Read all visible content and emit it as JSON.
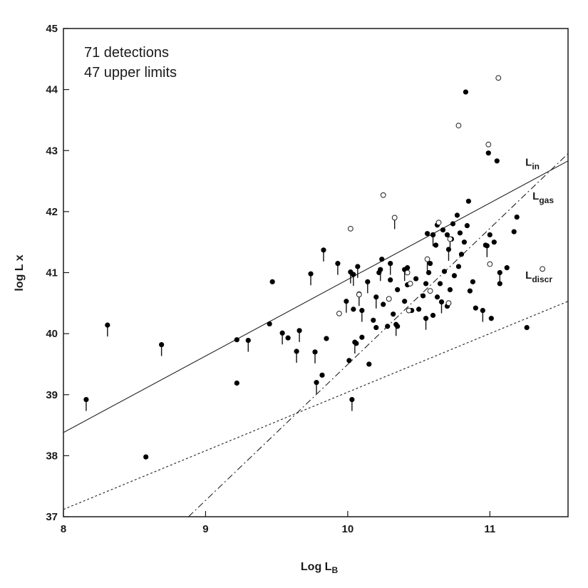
{
  "chart_data": {
    "type": "scatter",
    "title": "",
    "xlabel": "Log L",
    "xlabel_sub": "B",
    "ylabel": "log L x",
    "xlim": [
      8,
      11.55
    ],
    "ylim": [
      37,
      45
    ],
    "xticks": [
      "8",
      "9",
      "10",
      "11"
    ],
    "yticks": [
      "37",
      "38",
      "39",
      "40",
      "41",
      "42",
      "43",
      "44",
      "45"
    ],
    "grid": false,
    "annotations": [
      "71 detections",
      "47 upper limits"
    ],
    "lines": [
      {
        "name": "L",
        "sub": "in",
        "style": "solid",
        "x": [
          8.0,
          11.55
        ],
        "y": [
          38.38,
          42.83
        ],
        "label_x": 11.25,
        "label_y": 42.75
      },
      {
        "name": "L",
        "sub": "gas",
        "style": "dashdot",
        "x": [
          8.88,
          11.55
        ],
        "y": [
          37.0,
          42.95
        ],
        "label_x": 11.3,
        "label_y": 42.2
      },
      {
        "name": "L",
        "sub": "discr",
        "style": "dotted",
        "x": [
          8.0,
          11.55
        ],
        "y": [
          37.12,
          40.53
        ],
        "label_x": 11.25,
        "label_y": 40.9
      }
    ],
    "series": [
      {
        "name": "detections",
        "marker": "filled-circle",
        "points": [
          [
            8.58,
            37.98
          ],
          [
            9.22,
            39.19
          ],
          [
            9.22,
            39.9
          ],
          [
            9.45,
            40.16
          ],
          [
            9.47,
            40.85
          ],
          [
            9.58,
            39.93
          ],
          [
            9.82,
            39.32
          ],
          [
            9.85,
            39.92
          ],
          [
            10.01,
            39.56
          ],
          [
            10.04,
            40.4
          ],
          [
            10.06,
            39.84
          ],
          [
            10.08,
            40.65
          ],
          [
            10.1,
            39.94
          ],
          [
            10.15,
            39.5
          ],
          [
            10.18,
            40.22
          ],
          [
            10.22,
            41.0
          ],
          [
            10.25,
            40.48
          ],
          [
            10.28,
            40.12
          ],
          [
            10.3,
            40.88
          ],
          [
            10.32,
            40.32
          ],
          [
            10.35,
            40.72
          ],
          [
            10.4,
            40.53
          ],
          [
            10.42,
            41.08
          ],
          [
            10.45,
            40.38
          ],
          [
            10.48,
            40.9
          ],
          [
            10.5,
            40.4
          ],
          [
            10.53,
            40.62
          ],
          [
            10.55,
            40.82
          ],
          [
            10.57,
            41.0
          ],
          [
            10.6,
            40.3
          ],
          [
            10.63,
            40.6
          ],
          [
            10.65,
            40.82
          ],
          [
            10.68,
            41.02
          ],
          [
            10.7,
            40.45
          ],
          [
            10.72,
            40.72
          ],
          [
            10.75,
            40.95
          ],
          [
            10.78,
            41.1
          ],
          [
            10.8,
            41.3
          ],
          [
            10.82,
            41.5
          ],
          [
            10.84,
            41.77
          ],
          [
            10.86,
            40.7
          ],
          [
            10.88,
            40.85
          ],
          [
            10.83,
            43.96
          ],
          [
            10.85,
            42.17
          ],
          [
            10.99,
            42.96
          ],
          [
            11.05,
            42.83
          ],
          [
            11.01,
            40.25
          ],
          [
            11.03,
            41.5
          ],
          [
            11.07,
            40.82
          ],
          [
            11.12,
            41.08
          ],
          [
            11.17,
            41.67
          ],
          [
            11.19,
            41.91
          ],
          [
            11.26,
            40.1
          ],
          [
            10.6,
            41.62
          ],
          [
            10.63,
            41.78
          ],
          [
            10.67,
            41.7
          ],
          [
            10.74,
            41.8
          ],
          [
            10.77,
            41.94
          ],
          [
            10.56,
            41.64
          ],
          [
            10.58,
            41.15
          ],
          [
            10.62,
            41.45
          ],
          [
            10.7,
            41.62
          ],
          [
            10.73,
            41.55
          ],
          [
            10.79,
            41.65
          ],
          [
            10.42,
            40.8
          ],
          [
            10.35,
            40.12
          ],
          [
            10.24,
            41.22
          ],
          [
            10.9,
            40.42
          ],
          [
            10.97,
            41.45
          ],
          [
            11.0,
            41.62
          ],
          [
            10.2,
            40.1
          ]
        ]
      },
      {
        "name": "upper limits",
        "marker": "filled-circle-arrow",
        "points": [
          [
            8.16,
            38.92
          ],
          [
            8.31,
            40.14
          ],
          [
            8.69,
            39.82
          ],
          [
            9.3,
            39.89
          ],
          [
            9.54,
            40.01
          ],
          [
            9.64,
            39.71
          ],
          [
            9.66,
            40.05
          ],
          [
            9.74,
            40.98
          ],
          [
            9.77,
            39.7
          ],
          [
            9.78,
            39.2
          ],
          [
            9.83,
            41.37
          ],
          [
            9.93,
            41.15
          ],
          [
            9.99,
            40.53
          ],
          [
            10.02,
            41.01
          ],
          [
            10.03,
            38.92
          ],
          [
            10.04,
            40.97
          ],
          [
            10.05,
            39.86
          ],
          [
            10.07,
            41.1
          ],
          [
            10.1,
            40.38
          ],
          [
            10.14,
            40.85
          ],
          [
            10.2,
            40.6
          ],
          [
            10.23,
            41.05
          ],
          [
            10.3,
            41.15
          ],
          [
            10.34,
            40.15
          ],
          [
            10.4,
            41.05
          ],
          [
            10.55,
            40.25
          ],
          [
            10.6,
            41.62
          ],
          [
            10.66,
            40.52
          ],
          [
            10.71,
            41.38
          ],
          [
            10.95,
            40.38
          ],
          [
            10.98,
            41.44
          ],
          [
            11.07,
            41.0
          ]
        ]
      },
      {
        "name": "open",
        "marker": "open-circle",
        "points": [
          [
            10.02,
            41.72
          ],
          [
            10.25,
            42.27
          ],
          [
            10.33,
            41.9
          ],
          [
            9.94,
            40.33
          ],
          [
            10.08,
            40.64
          ],
          [
            10.29,
            40.57
          ],
          [
            10.42,
            41.0
          ],
          [
            10.44,
            40.82
          ],
          [
            10.43,
            40.38
          ],
          [
            10.56,
            41.22
          ],
          [
            10.58,
            40.7
          ],
          [
            10.64,
            41.82
          ],
          [
            10.71,
            40.5
          ],
          [
            10.72,
            41.55
          ],
          [
            10.78,
            43.41
          ],
          [
            10.99,
            43.1
          ],
          [
            11.0,
            41.14
          ],
          [
            11.06,
            44.19
          ],
          [
            11.37,
            41.06
          ]
        ]
      },
      {
        "name": "open-limits",
        "marker": "open-circle-arrow",
        "points": [
          [
            10.33,
            41.9
          ],
          [
            10.08,
            40.64
          ],
          [
            10.56,
            41.22
          ],
          [
            10.72,
            41.55
          ]
        ]
      }
    ]
  }
}
